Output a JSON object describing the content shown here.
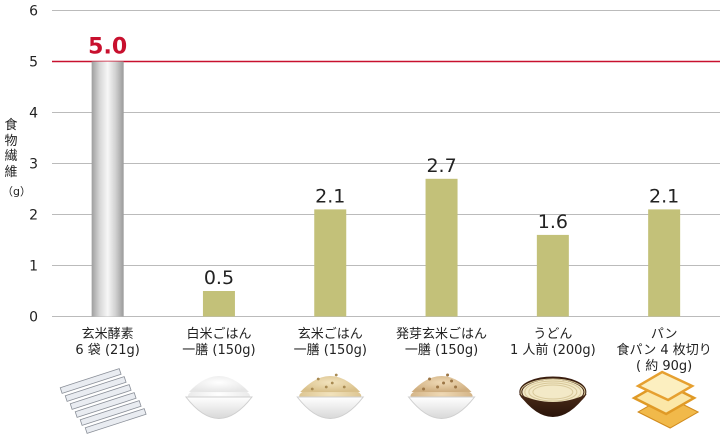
{
  "chart_data": {
    "type": "bar",
    "ylabel_chars": [
      "食",
      "物",
      "繊",
      "維"
    ],
    "yunit": "（g）",
    "yticks": [
      0,
      1,
      2,
      3,
      4,
      5,
      6
    ],
    "ylim": [
      0,
      6
    ],
    "grid": true,
    "reference_line": {
      "value": 5,
      "color": "#c8102e"
    },
    "categories": [
      {
        "lines": [
          "玄米酵素",
          "6 袋 (21g)"
        ],
        "icon": "supplement-sticks-icon"
      },
      {
        "lines": [
          "白米ごはん",
          "一膳 (150g)"
        ],
        "icon": "white-rice-bowl-icon"
      },
      {
        "lines": [
          "玄米ごはん",
          "一膳 (150g)"
        ],
        "icon": "brown-rice-bowl-icon"
      },
      {
        "lines": [
          "発芽玄米ごはん",
          "一膳 (150g)"
        ],
        "icon": "germinated-rice-bowl-icon"
      },
      {
        "lines": [
          "うどん",
          "1 人前 (200g)"
        ],
        "icon": "udon-bowl-icon"
      },
      {
        "lines": [
          "パン",
          "食パン 4 枚切り",
          "( 約 90g)"
        ],
        "icon": "bread-icon"
      }
    ],
    "values": [
      5.0,
      0.5,
      2.1,
      2.7,
      1.6,
      2.1
    ],
    "value_labels": [
      "5.0",
      "0.5",
      "2.1",
      "2.7",
      "1.6",
      "2.1"
    ],
    "colors": {
      "highlight_bar": "#cfcfcf",
      "highlight_label": "#c8102e",
      "bar": "#c3c179",
      "grid": "#bbbbbb",
      "text": "#222222"
    }
  }
}
